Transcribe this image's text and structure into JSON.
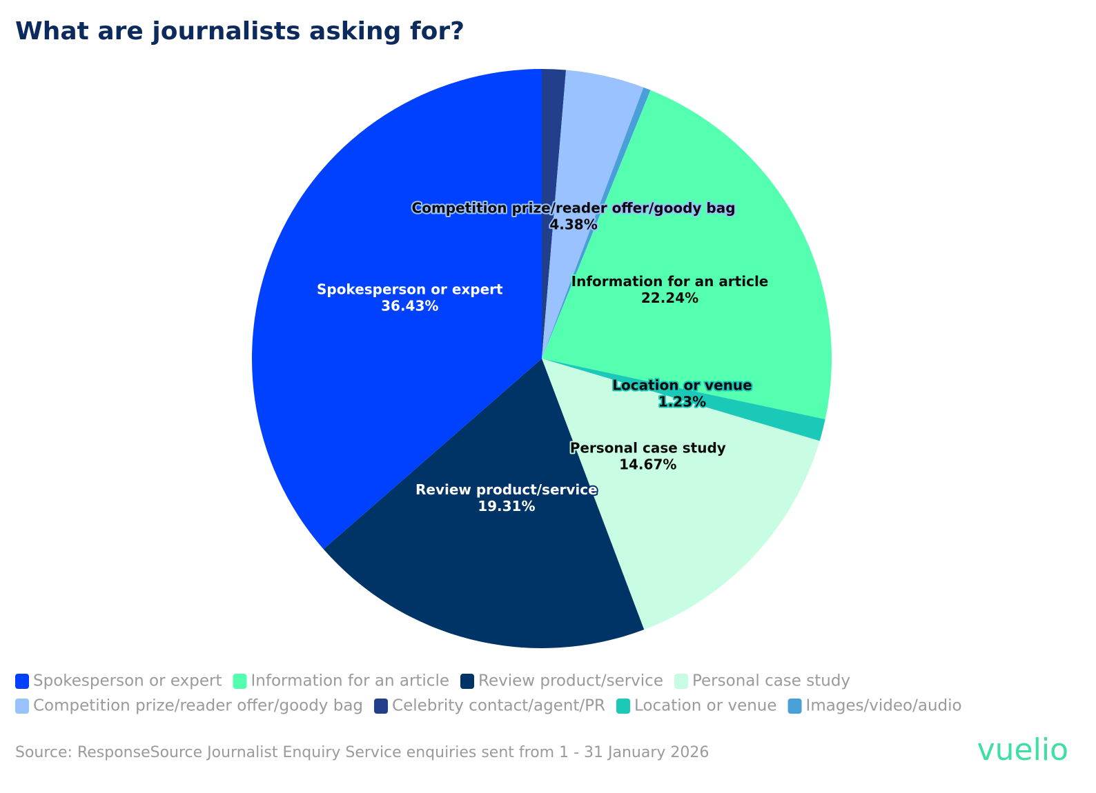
{
  "chart_data": {
    "type": "pie",
    "title": "What are journalists asking for?",
    "categories": [
      "Spokesperson or expert",
      "Information for an article",
      "Review product/service",
      "Personal case study",
      "Competition prize/reader offer/goody bag",
      "Celebrity contact/agent/PR",
      "Location or venue",
      "Images/video/audio"
    ],
    "values": [
      36.43,
      22.24,
      19.31,
      14.67,
      4.38,
      1.33,
      1.23,
      0.41
    ],
    "value_labels": [
      "36.43%",
      "22.24%",
      "19.31%",
      "14.67%",
      "4.38%",
      null,
      "1.23%",
      null
    ],
    "colors": [
      "#0040ff",
      "#55ffb0",
      "#003366",
      "#c8fde4",
      "#99c2ff",
      "#223f8c",
      "#1bc9b8",
      "#4a9fd8"
    ],
    "source": "Source: ResponseSource Journalist Enquiry Service enquiries sent from 1 - 31 January 2026",
    "logo": "vuelio"
  }
}
